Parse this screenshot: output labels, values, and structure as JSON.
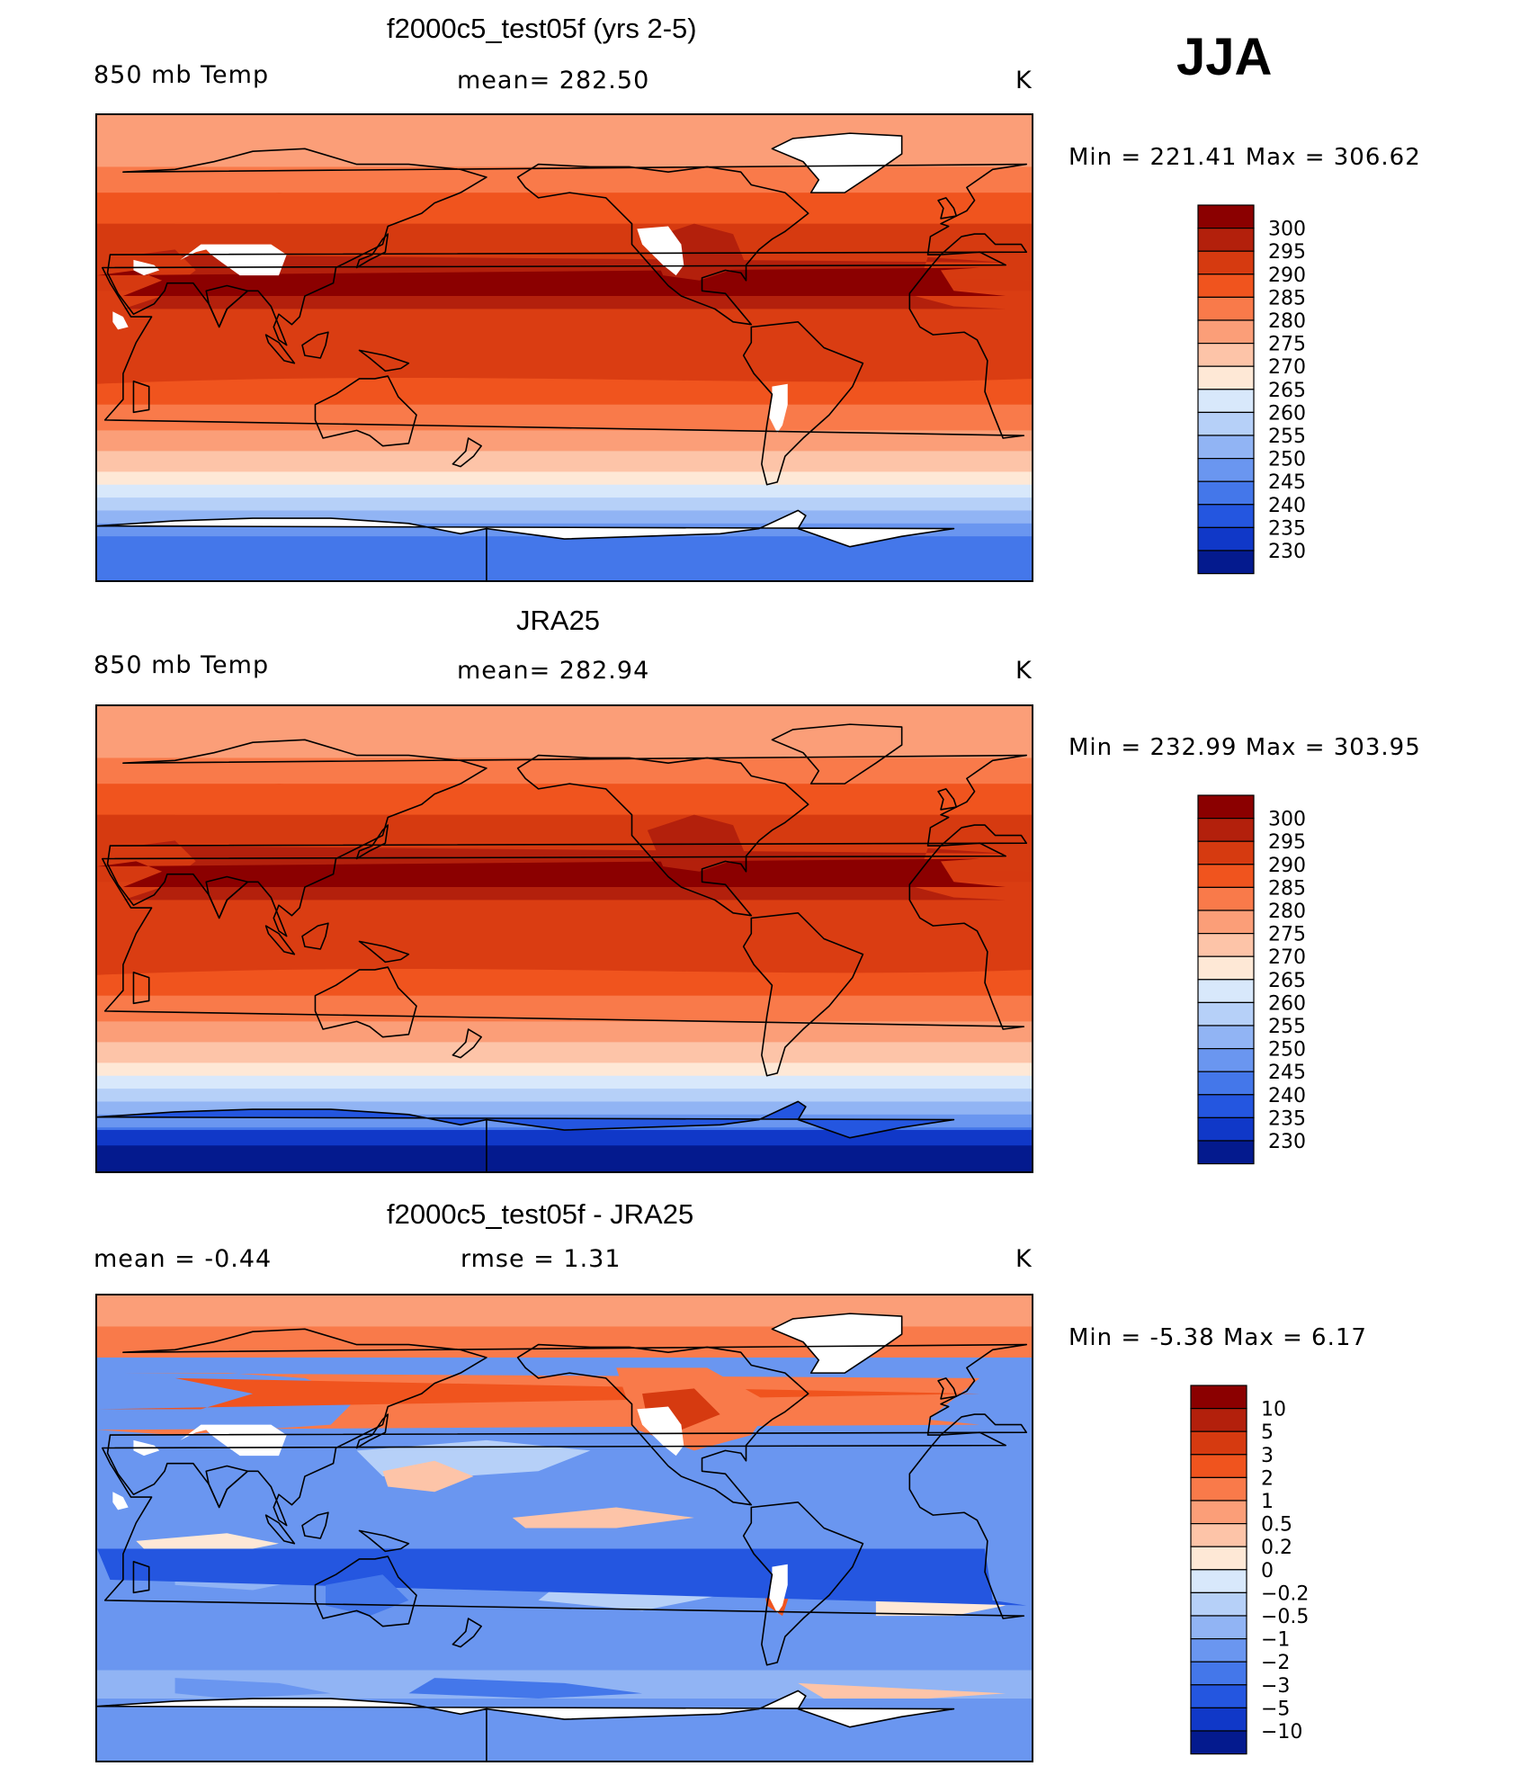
{
  "season": "JJA",
  "panels": [
    {
      "title": "f2000c5_test05f (yrs 2-5)",
      "left_label": "850 mb Temp",
      "center_label": "mean= 282.50",
      "units": "K",
      "minmax": "Min = 221.41 Max = 306.62",
      "colorbar": {
        "labels": [
          "300",
          "295",
          "290",
          "285",
          "280",
          "275",
          "270",
          "265",
          "260",
          "255",
          "250",
          "245",
          "240",
          "235",
          "230"
        ],
        "colors": [
          "#8b0000",
          "#b3200c",
          "#d63a10",
          "#f0541e",
          "#f97a4a",
          "#fb9e78",
          "#fdc4a8",
          "#fee8d6",
          "#d8e8fb",
          "#b6d0f8",
          "#91b4f4",
          "#6a96f0",
          "#4477ea",
          "#2456e0",
          "#1038c8",
          "#041a8e"
        ]
      },
      "map": {
        "type": "model",
        "missing_land": true,
        "antarctic_blank": true
      }
    },
    {
      "title": "JRA25",
      "left_label": "850 mb Temp",
      "center_label": "mean= 282.94",
      "units": "K",
      "minmax": "Min = 232.99 Max = 303.95",
      "colorbar": {
        "labels": [
          "300",
          "295",
          "290",
          "285",
          "280",
          "275",
          "270",
          "265",
          "260",
          "255",
          "250",
          "245",
          "240",
          "235",
          "230"
        ],
        "colors": [
          "#8b0000",
          "#b3200c",
          "#d63a10",
          "#f0541e",
          "#f97a4a",
          "#fb9e78",
          "#fdc4a8",
          "#fee8d6",
          "#d8e8fb",
          "#b6d0f8",
          "#91b4f4",
          "#6a96f0",
          "#4477ea",
          "#2456e0",
          "#1038c8",
          "#041a8e"
        ]
      },
      "map": {
        "type": "obs",
        "missing_land": false,
        "antarctic_blank": false
      }
    },
    {
      "title": "f2000c5_test05f - JRA25",
      "left_label": "mean = -0.44",
      "center_label": "rmse = 1.31",
      "units": "K",
      "minmax": "Min = -5.38 Max = 6.17",
      "colorbar": {
        "labels": [
          "10",
          "5",
          "3",
          "2",
          "1",
          "0.5",
          "0.2",
          "0",
          "-0.2",
          "-0.5",
          "-1",
          "-2",
          "-3",
          "-5",
          "-10"
        ],
        "colors": [
          "#8b0000",
          "#b3200c",
          "#d63a10",
          "#f0541e",
          "#f97a4a",
          "#fb9e78",
          "#fdc4a8",
          "#fee8d6",
          "#d8e8fb",
          "#b6d0f8",
          "#91b4f4",
          "#6a96f0",
          "#4477ea",
          "#2456e0",
          "#1038c8",
          "#041a8e"
        ]
      },
      "map": {
        "type": "diff",
        "missing_land": true,
        "antarctic_blank": true
      }
    }
  ],
  "chart_data": [
    {
      "type": "heatmap",
      "title": "f2000c5_test05f (yrs 2-5)",
      "variable": "850 mb Temp",
      "units": "K",
      "mean": 282.5,
      "min": 221.41,
      "max": 306.62,
      "contour_levels": [
        230,
        235,
        240,
        245,
        250,
        255,
        260,
        265,
        270,
        275,
        280,
        285,
        290,
        295,
        300
      ],
      "colormap": "blue-white-red"
    },
    {
      "type": "heatmap",
      "title": "JRA25",
      "variable": "850 mb Temp",
      "units": "K",
      "mean": 282.94,
      "min": 232.99,
      "max": 303.95,
      "contour_levels": [
        230,
        235,
        240,
        245,
        250,
        255,
        260,
        265,
        270,
        275,
        280,
        285,
        290,
        295,
        300
      ],
      "colormap": "blue-white-red"
    },
    {
      "type": "heatmap",
      "title": "f2000c5_test05f - JRA25",
      "units": "K",
      "mean": -0.44,
      "rmse": 1.31,
      "min": -5.38,
      "max": 6.17,
      "contour_levels": [
        -10,
        -5,
        -3,
        -2,
        -1,
        -0.5,
        -0.2,
        0,
        0.2,
        0.5,
        1,
        2,
        3,
        5,
        10
      ],
      "colormap": "blue-white-red"
    }
  ]
}
